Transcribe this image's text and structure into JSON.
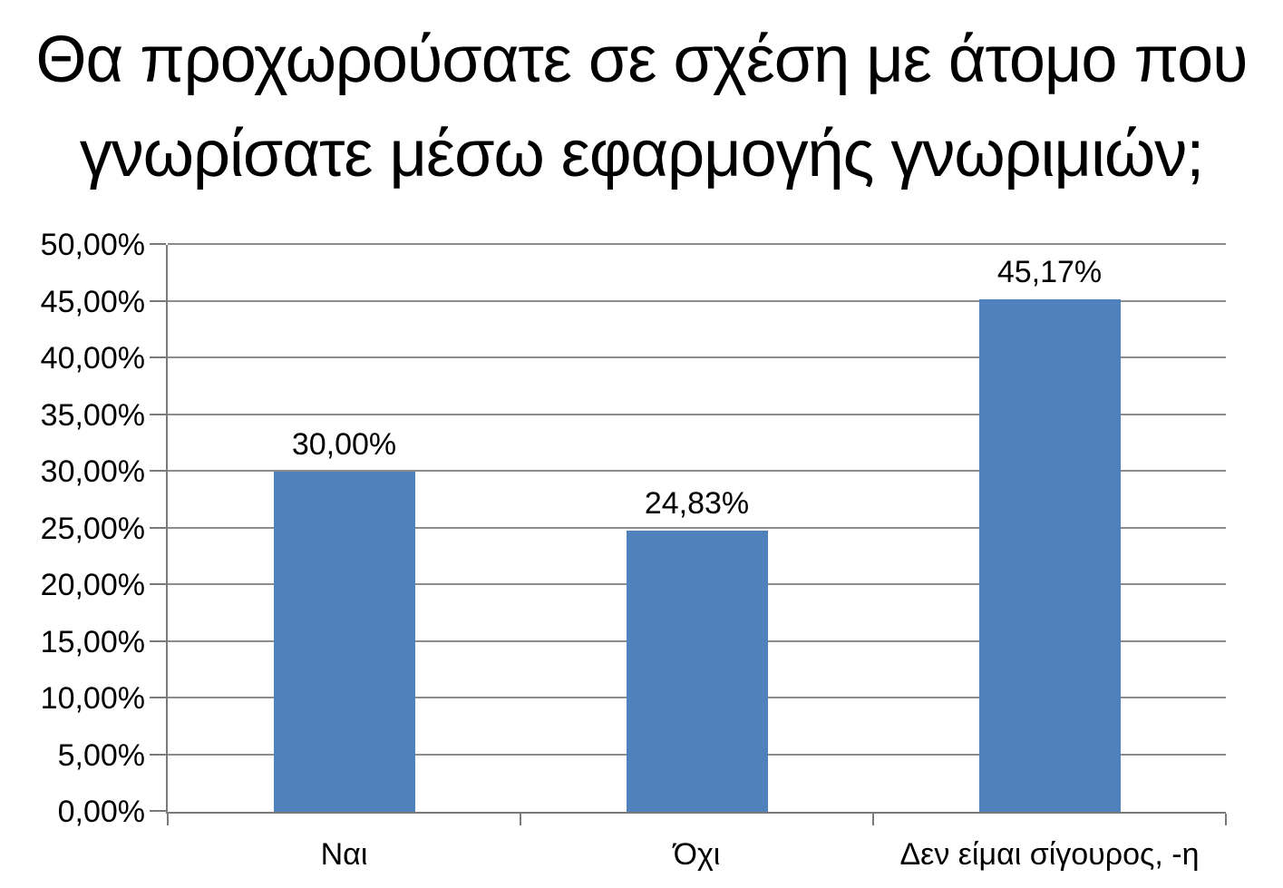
{
  "chart_data": {
    "type": "bar",
    "title": "Θα προχωρούσατε σε σχέση με άτομο που γνωρίσατε μέσω εφαρμογής γνωριμιών;",
    "title_lines": [
      "Θα προχωρούσατε σε σχέση με άτομο που",
      "γνωρίσατε μέσω εφαρμογής γνωριμιών;"
    ],
    "categories": [
      "Ναι",
      "Όχι",
      "Δεν είμαι σίγουρος, -η"
    ],
    "values": [
      30.0,
      24.83,
      45.17
    ],
    "data_labels": [
      "30,00%",
      "24,83%",
      "45,17%"
    ],
    "y_ticks": [
      "0,00%",
      "5,00%",
      "10,00%",
      "15,00%",
      "20,00%",
      "25,00%",
      "30,00%",
      "35,00%",
      "40,00%",
      "45,00%",
      "50,00%"
    ],
    "ylim": [
      0,
      50
    ],
    "y_step": 5,
    "grid": true,
    "legend": "none",
    "xlabel": "",
    "ylabel": "",
    "colors": {
      "bar": "#4F81BD",
      "gridline": "#8C8C8C",
      "axis": "#7A7A7A",
      "text": "#000000",
      "background": "#FFFFFF"
    }
  }
}
